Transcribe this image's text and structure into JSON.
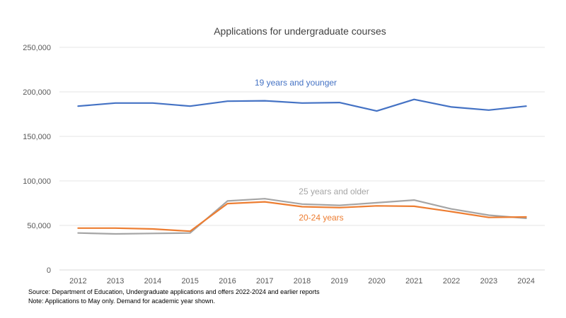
{
  "chart_data": {
    "type": "line",
    "title": "Applications for undergraduate courses",
    "xlabel": "",
    "ylabel": "",
    "categories": [
      "2012",
      "2013",
      "2014",
      "2015",
      "2016",
      "2017",
      "2018",
      "2019",
      "2020",
      "2021",
      "2022",
      "2023",
      "2024"
    ],
    "y_ticks": [
      "0",
      "50,000",
      "100,000",
      "150,000",
      "200,000",
      "250,000"
    ],
    "ylim": [
      0,
      250000
    ],
    "grid": true,
    "series": [
      {
        "name": "19 years and younger",
        "color": "#4472C4",
        "values": [
          184000,
          187500,
          187500,
          184000,
          189500,
          190000,
          187500,
          188000,
          178500,
          191500,
          183000,
          179500,
          184000
        ]
      },
      {
        "name": "25 years and older",
        "color": "#A5A5A5",
        "values": [
          41500,
          40500,
          41000,
          41500,
          77500,
          80000,
          74000,
          72500,
          75500,
          78500,
          68500,
          61500,
          58000
        ]
      },
      {
        "name": "20-24 years",
        "color": "#ED7D31",
        "values": [
          47000,
          47000,
          46000,
          43500,
          74500,
          76500,
          71000,
          70000,
          72000,
          71500,
          65500,
          59000,
          59500
        ]
      }
    ]
  },
  "notes": {
    "source": "Source: Department of Education, Undergraduate applications and offers 2022-2024 and earlier reports",
    "note": "Note: Applications to May only.  Demand for academic year shown."
  }
}
